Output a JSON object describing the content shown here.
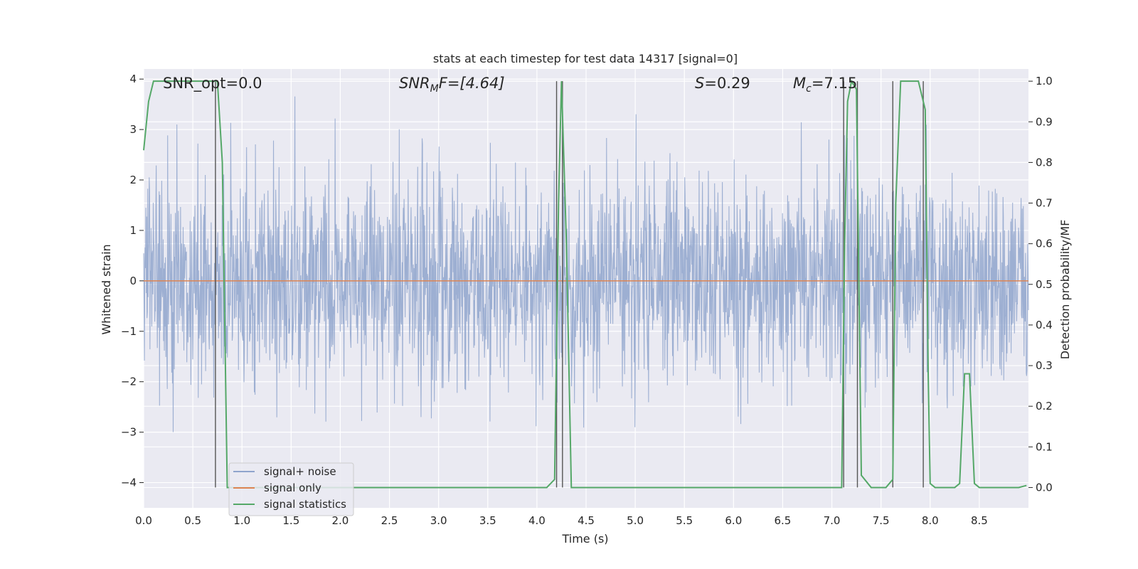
{
  "chart_data": {
    "type": "line",
    "title": "stats at each timestep for test data 14317 [signal=0]",
    "xlabel": "Time (s)",
    "ylabel": "Whitened strain",
    "y2label": "Detection probability/MF",
    "xlim": [
      0.0,
      9.0
    ],
    "ylim": [
      -4.5,
      4.2
    ],
    "y2lim": [
      -0.05,
      1.03
    ],
    "x_ticks": [
      "0.0",
      "0.5",
      "1.0",
      "1.5",
      "2.0",
      "2.5",
      "3.0",
      "3.5",
      "4.0",
      "4.5",
      "5.0",
      "5.5",
      "6.0",
      "6.5",
      "7.0",
      "7.5",
      "8.0",
      "8.5"
    ],
    "y_ticks": [
      "−4",
      "−3",
      "−2",
      "−1",
      "0",
      "1",
      "2",
      "3",
      "4"
    ],
    "y2_ticks": [
      "0.0",
      "0.1",
      "0.2",
      "0.3",
      "0.4",
      "0.5",
      "0.6",
      "0.7",
      "0.8",
      "0.9",
      "1.0"
    ],
    "grid": true,
    "legend_position": "lower-left",
    "annotations": {
      "snr_opt": "SNR_opt=0.0",
      "snr_mf_prefix": "SNR",
      "snr_mf_sub": "M",
      "snr_mf_suffix": "F=[4.64]",
      "s_prefix": "S",
      "s_suffix": "=0.29",
      "mc_prefix": "M",
      "mc_sub": "c",
      "mc_suffix": "=7.15"
    },
    "series": [
      {
        "name": "signal+ noise",
        "color": "#8fa4cc",
        "description_values": "gaussian whitened noise, amplitude ~±2.5 with peaks to ±4"
      },
      {
        "name": "signal only",
        "color": "#dd8452",
        "values_constant": 0.0
      },
      {
        "name": "signal statistics",
        "color": "#55a868",
        "x": [
          0.0,
          0.05,
          0.1,
          0.15,
          0.2,
          0.3,
          0.4,
          0.5,
          0.6,
          0.7,
          0.73,
          0.75,
          0.8,
          0.85,
          0.9,
          1.0,
          4.0,
          4.1,
          4.18,
          4.22,
          4.25,
          4.3,
          4.35,
          4.4,
          7.0,
          7.1,
          7.13,
          7.16,
          7.2,
          7.25,
          7.3,
          7.4,
          7.55,
          7.62,
          7.65,
          7.7,
          7.8,
          7.88,
          7.95,
          7.98,
          8.0,
          8.05,
          8.1,
          8.2,
          8.25,
          8.3,
          8.35,
          8.4,
          8.45,
          8.5,
          8.6,
          8.7,
          8.8,
          8.9,
          8.98
        ],
        "values": [
          0.83,
          0.95,
          1.0,
          1.0,
          1.0,
          1.0,
          1.0,
          1.0,
          1.0,
          1.0,
          1.0,
          1.0,
          0.8,
          0.0,
          0.0,
          0.0,
          0.0,
          0.0,
          0.02,
          0.7,
          1.0,
          0.6,
          0.0,
          0.0,
          0.0,
          0.0,
          0.6,
          0.95,
          1.0,
          0.98,
          0.03,
          0.0,
          0.0,
          0.02,
          0.7,
          1.0,
          1.0,
          1.0,
          0.93,
          0.28,
          0.01,
          0.0,
          0.0,
          0.0,
          0.0,
          0.01,
          0.28,
          0.28,
          0.01,
          0.0,
          0.0,
          0.0,
          0.0,
          0.0,
          0.005
        ]
      }
    ],
    "vertical_markers": [
      0.73,
      4.2,
      4.26,
      7.12,
      7.26,
      7.62,
      7.93
    ]
  }
}
